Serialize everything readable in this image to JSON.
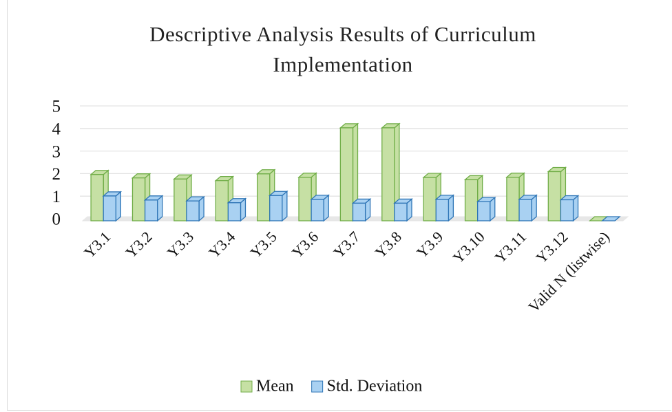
{
  "chart_data": {
    "type": "bar3d",
    "title": "Descriptive Analysis Results of Curriculum Implementation",
    "categories": [
      "Y3.1",
      "Y3.2",
      "Y3.3",
      "Y3.4",
      "Y3.5",
      "Y3.6",
      "Y3.7",
      "Y3.8",
      "Y3.9",
      "Y3.10",
      "Y3.11",
      "Y3.12",
      "Valid N (listwise)"
    ],
    "series": [
      {
        "name": "Mean",
        "color": "#c6e0a4",
        "edge": "#70ad47",
        "values": [
          2.05,
          1.9,
          1.85,
          1.78,
          2.08,
          1.93,
          4.12,
          4.12,
          1.92,
          1.82,
          1.93,
          2.18,
          0
        ]
      },
      {
        "name": "Std. Deviation",
        "color": "#a9d1f2",
        "edge": "#2e75b6",
        "values": [
          1.1,
          0.92,
          0.88,
          0.8,
          1.12,
          0.95,
          0.78,
          0.78,
          0.95,
          0.85,
          0.95,
          0.93,
          0
        ]
      }
    ],
    "ylim": [
      0,
      5
    ],
    "yticks": [
      0,
      1,
      2,
      3,
      4,
      5
    ],
    "grid": true,
    "legend": "bottom"
  }
}
